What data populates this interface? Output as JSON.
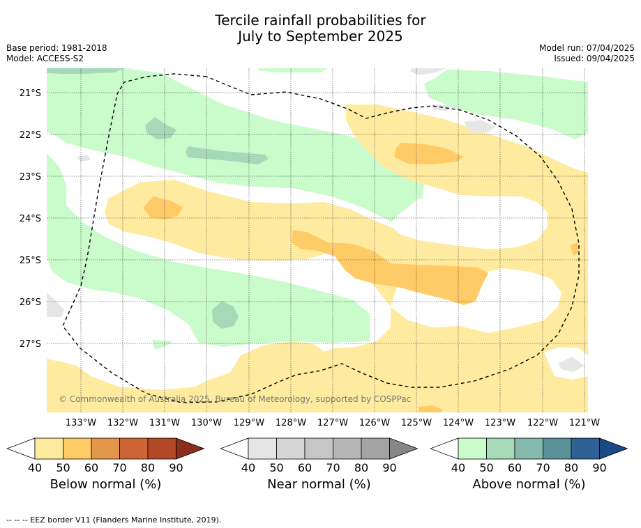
{
  "title_line1": "Tercile rainfall probabilities for",
  "title_line2": "July to September 2025",
  "base_period": "Base period: 1981-2018",
  "model": "Model: ACCESS-S2",
  "model_run": "Model run: 07/04/2025",
  "issued": "Issued: 09/04/2025",
  "copyright": "© Commonwealth of Australia 2025, Bureau of Meteorology, supported by COSPPac",
  "lat_labels": [
    "21°S",
    "22°S",
    "23°S",
    "24°S",
    "25°S",
    "26°S",
    "27°S"
  ],
  "lon_labels": [
    "133°W",
    "132°W",
    "131°W",
    "130°W",
    "129°W",
    "128°W",
    "127°W",
    "126°W",
    "125°W",
    "124°W",
    "123°W",
    "122°W",
    "121°W"
  ],
  "colorbars": [
    {
      "title": "Below normal (%)",
      "ticks": [
        "40",
        "50",
        "60",
        "70",
        "80",
        "90"
      ],
      "colors": [
        "#ffeba0",
        "#ffcb66",
        "#e3974a",
        "#cd6535",
        "#b24a28",
        "#8c2e1c"
      ]
    },
    {
      "title": "Near normal (%)",
      "ticks": [
        "40",
        "50",
        "60",
        "70",
        "80",
        "90"
      ],
      "colors": [
        "#e6e6e6",
        "#d6d6d6",
        "#c6c6c6",
        "#b6b6b6",
        "#a3a3a3",
        "#868686"
      ]
    },
    {
      "title": "Above normal (%)",
      "ticks": [
        "40",
        "50",
        "60",
        "70",
        "80",
        "90"
      ],
      "colors": [
        "#c9fbcb",
        "#a5d9b7",
        "#84b9ad",
        "#5a9098",
        "#2f6294",
        "#1b4a86"
      ]
    }
  ],
  "footnote": "--  --  -- EEZ border V11 (Flanders Marine Institute, 2019).",
  "colors": {
    "below_50": "#ffeba0",
    "below_60": "#ffcb66",
    "near_50": "#e6e6e6",
    "above_50": "#c9fbcb",
    "above_60": "#a5d9b7"
  }
}
